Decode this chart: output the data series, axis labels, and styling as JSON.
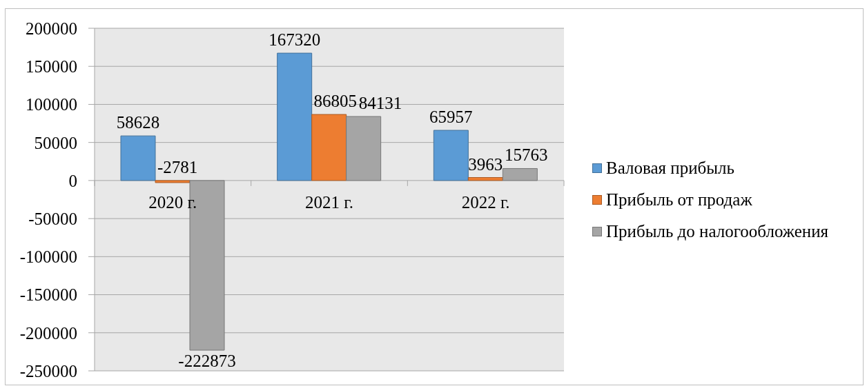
{
  "chart_data": {
    "type": "bar",
    "categories": [
      "2020 г.",
      "2021 г.",
      "2022 г."
    ],
    "series": [
      {
        "name": "Валовая прибыль",
        "color": "#5b9bd5",
        "values": [
          58628,
          167320,
          65957
        ]
      },
      {
        "name": "Прибыль от продаж",
        "color": "#ed7d31",
        "values": [
          -2781,
          86805,
          3963
        ]
      },
      {
        "name": "Прибыль до налогообложения",
        "color": "#a5a5a5",
        "values": [
          -222873,
          84131,
          15763
        ]
      }
    ],
    "ylim": [
      -250000,
      200000
    ],
    "yticks": [
      -250000,
      -200000,
      -150000,
      -100000,
      -50000,
      0,
      50000,
      100000,
      150000,
      200000
    ],
    "grid": "y",
    "legend": "right",
    "data_labels": true
  }
}
